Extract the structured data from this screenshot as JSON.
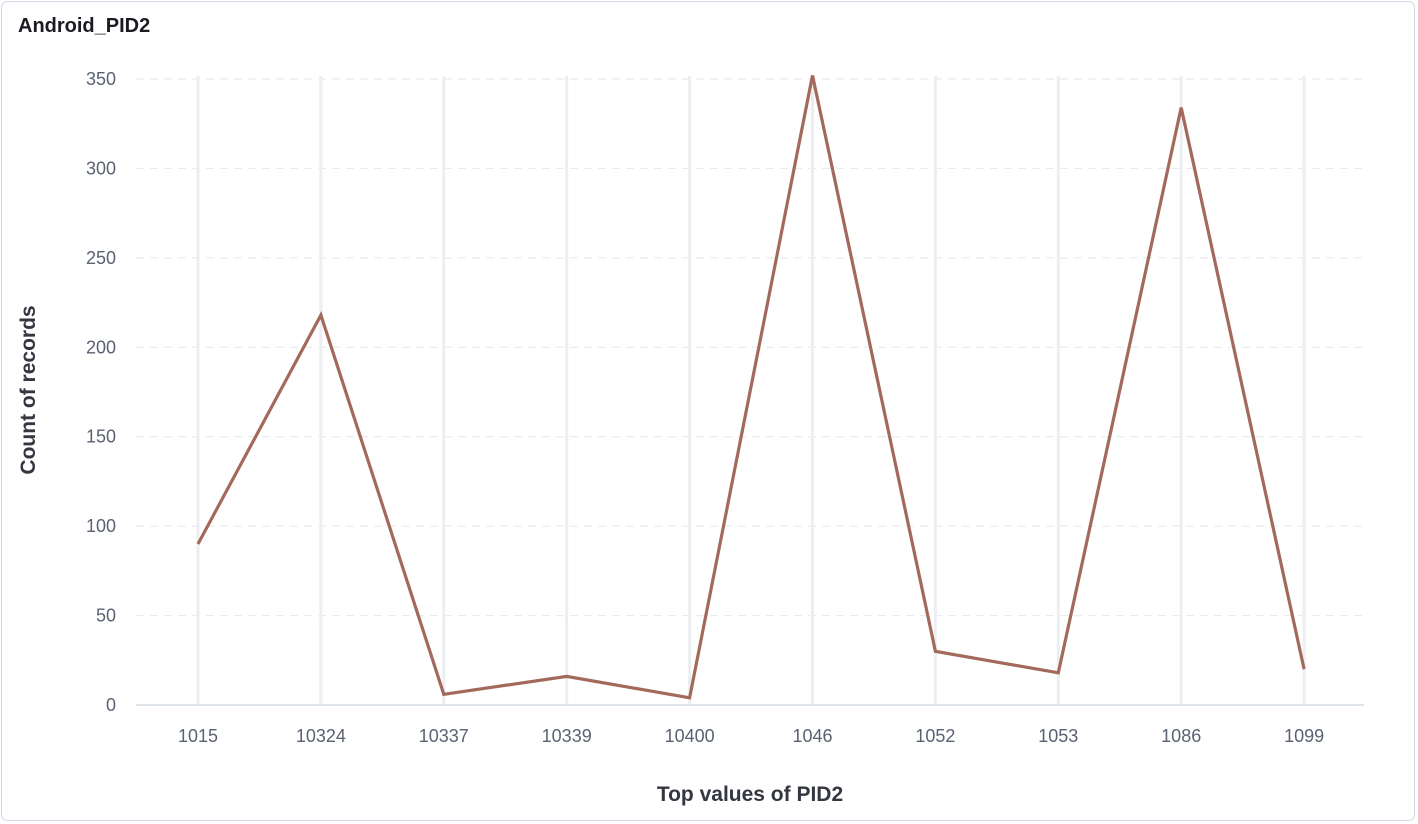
{
  "panel": {
    "title": "Android_PID2"
  },
  "chart_data": {
    "type": "line",
    "title": "Android_PID2",
    "xlabel": "Top values of PID2",
    "ylabel": "Count of records",
    "categories": [
      "1015",
      "10324",
      "10337",
      "10339",
      "10400",
      "1046",
      "1052",
      "1053",
      "1086",
      "1099"
    ],
    "series": [
      {
        "values": [
          90,
          218,
          6,
          16,
          4,
          352,
          30,
          18,
          334,
          20
        ],
        "color": "#a36a5c"
      }
    ],
    "ylim": [
      0,
      350
    ],
    "yticks": [
      0,
      50,
      100,
      150,
      200,
      250,
      300,
      350
    ],
    "grid": true,
    "legend": "none"
  }
}
